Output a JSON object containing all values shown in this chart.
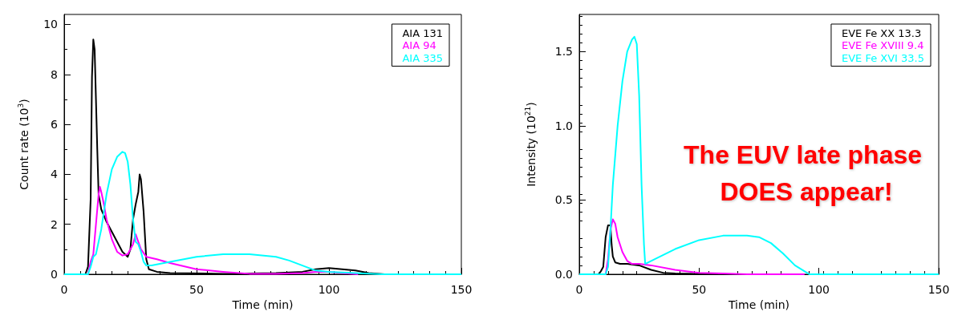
{
  "chart_data": [
    {
      "type": "line",
      "xlabel": "Time (min)",
      "ylabel": "Count rate (10$^{3}$)",
      "xlim": [
        0,
        150
      ],
      "ylim": [
        0,
        10.4
      ],
      "xticks": [
        0,
        50,
        100,
        150
      ],
      "yticks": [
        0,
        2,
        4,
        6,
        8,
        10
      ],
      "legend": "top right",
      "marker": "none",
      "series": [
        {
          "name": "AIA 131",
          "color": "#000000",
          "x": [
            0,
            8,
            9,
            10,
            10.5,
            11,
            11.5,
            12,
            12.5,
            13,
            14,
            16,
            18,
            20,
            22,
            24,
            25,
            26,
            27,
            28,
            28.5,
            29,
            30,
            31,
            32,
            35,
            40,
            60,
            80,
            90,
            95,
            100,
            105,
            110,
            115,
            121
          ],
          "values": [
            0,
            0,
            0.3,
            3,
            7.9,
            9.4,
            9,
            7,
            5,
            3.2,
            2.6,
            2.1,
            1.7,
            1.3,
            0.9,
            0.7,
            1,
            2.2,
            2.8,
            3.3,
            4,
            3.8,
            2.5,
            0.6,
            0.2,
            0.1,
            0.05,
            0.02,
            0.05,
            0.1,
            0.2,
            0.25,
            0.2,
            0.15,
            0.05,
            0
          ]
        },
        {
          "name": "AIA 94",
          "color": "#ff00ff",
          "x": [
            0,
            9,
            10,
            11,
            12,
            13,
            13.5,
            14,
            15,
            16,
            18,
            20,
            22,
            24,
            26,
            27,
            28,
            29,
            31,
            35,
            40,
            50,
            60,
            70,
            80,
            90,
            95,
            100,
            105,
            111
          ],
          "values": [
            0,
            0,
            0.5,
            0.8,
            2,
            3.2,
            3.5,
            3.3,
            2.8,
            2.2,
            1.4,
            0.9,
            0.75,
            0.8,
            1.2,
            1.6,
            1.3,
            1,
            0.7,
            0.6,
            0.45,
            0.2,
            0.1,
            0.02,
            0.02,
            0.05,
            0.1,
            0.1,
            0.05,
            0
          ]
        },
        {
          "name": "AIA 335",
          "color": "#00ffff",
          "x": [
            0,
            9,
            10,
            11,
            12,
            14,
            16,
            18,
            20,
            22,
            23,
            24,
            25,
            26,
            27,
            28,
            29,
            30,
            31,
            33,
            40,
            50,
            60,
            70,
            80,
            85,
            90,
            95,
            100,
            110,
            120,
            150
          ],
          "values": [
            0,
            0,
            0.3,
            0.7,
            0.8,
            1.8,
            3.2,
            4.2,
            4.7,
            4.9,
            4.85,
            4.5,
            3.6,
            2.2,
            1.3,
            1.2,
            0.9,
            0.5,
            0.35,
            0.35,
            0.5,
            0.7,
            0.8,
            0.8,
            0.7,
            0.55,
            0.35,
            0.15,
            0.1,
            0.05,
            0,
            0
          ]
        }
      ]
    },
    {
      "type": "line",
      "xlabel": "Time (min)",
      "ylabel": "Intensity (10$^{21}$)",
      "xlim": [
        0,
        150
      ],
      "ylim": [
        0,
        1.75
      ],
      "xticks": [
        0,
        50,
        100,
        150
      ],
      "yticks": [
        {
          "value": 0,
          "label": "0.0"
        },
        0.5,
        {
          "value": 1,
          "label": "1.0"
        },
        1.5
      ],
      "legend": "top right",
      "marker": "none",
      "annotations": [
        "The EUV late phase DOES appear!"
      ],
      "series": [
        {
          "name": "EVE Fe XX 13.3",
          "color": "#000000",
          "x": [
            0,
            8,
            9,
            10,
            11,
            12,
            13,
            13.5,
            14,
            15,
            17,
            20,
            25,
            30,
            35,
            40,
            58
          ],
          "values": [
            0,
            0,
            0.02,
            0.05,
            0.25,
            0.33,
            0.33,
            0.2,
            0.12,
            0.08,
            0.07,
            0.07,
            0.06,
            0.03,
            0.01,
            0.005,
            0
          ]
        },
        {
          "name": "EVE Fe XVIII 9.4",
          "color": "#ff00ff",
          "x": [
            0,
            11,
            12,
            13,
            14,
            15,
            16,
            18,
            20,
            22,
            25,
            30,
            40,
            50,
            60,
            70,
            94
          ],
          "values": [
            0,
            0,
            0.1,
            0.3,
            0.37,
            0.34,
            0.25,
            0.15,
            0.09,
            0.07,
            0.07,
            0.06,
            0.03,
            0.01,
            0.005,
            0,
            0
          ]
        },
        {
          "name": "EVE Fe XVI 33.5",
          "color": "#00ffff",
          "x": [
            0,
            11,
            12,
            13,
            14,
            16,
            18,
            20,
            22,
            23,
            24,
            25,
            26,
            27,
            27.5,
            30,
            40,
            50,
            60,
            70,
            75,
            80,
            85,
            90,
            95,
            96,
            150
          ],
          "values": [
            0,
            0,
            0.05,
            0.3,
            0.6,
            1,
            1.3,
            1.5,
            1.58,
            1.6,
            1.55,
            1.2,
            0.6,
            0.2,
            0.07,
            0.09,
            0.17,
            0.23,
            0.26,
            0.26,
            0.25,
            0.21,
            0.14,
            0.06,
            0.01,
            0,
            0
          ]
        }
      ]
    }
  ]
}
